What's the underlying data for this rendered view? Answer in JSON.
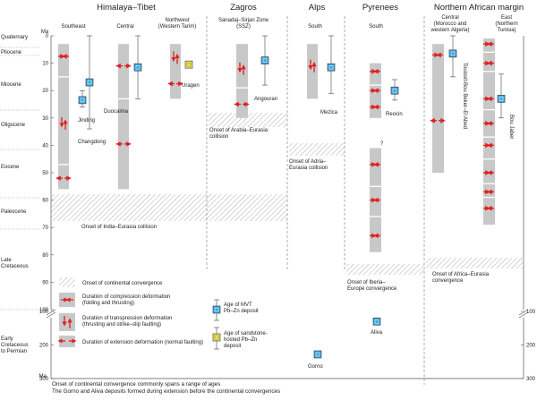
{
  "header": {
    "ma_top": "Ma",
    "ma_bottom": "Ma",
    "groups": [
      {
        "name": "Himalaya–Tibet",
        "subs": [
          "Southeast",
          "Central",
          "Northwest (Western Tarim)"
        ]
      },
      {
        "name": "Zagros",
        "subs": [
          "Sanadaj–Sirjan Zone (SSZ)"
        ]
      },
      {
        "name": "Alps",
        "subs": [
          "South"
        ]
      },
      {
        "name": "Pyrenees",
        "subs": [
          "South"
        ]
      },
      {
        "name": "Northern African margin",
        "subs": [
          "Central (Morocco and western Algeria)",
          "East (Northern Tunisia)"
        ]
      }
    ]
  },
  "epochs": [
    "Quaternary",
    "Pliocene",
    "Miocene",
    "Oligocene",
    "Eocene",
    "Paleocene",
    "Late Cretaceous",
    "Early Cretaceous to Permian"
  ],
  "ticks_upper": [
    "0",
    "10",
    "20",
    "30",
    "40",
    "50",
    "60",
    "70",
    "80",
    "90",
    "100"
  ],
  "ticks_lower": [
    "100",
    "200",
    "300"
  ],
  "deposits": {
    "jinding": "Jinding",
    "changdong": "Changdong",
    "duocaima": "Duocaima",
    "uragen": "Uragen",
    "angouran": "Angouran",
    "mezica": "Mezica",
    "reocin": "Reocin",
    "touissit": "Touissit-Bou Beker–El Abed",
    "boujaber": "Bou Jaber",
    "aliva": "Aliva",
    "gorno": "Gorno",
    "question": "?"
  },
  "collisions": {
    "india": "Onset of India–Eurasia collision",
    "arabia": "Onset of Arabia–Eurasia collision",
    "adria": "Onset of Adria–Eurasia collision",
    "iberia": "Onset of Iberia–Europe convergence",
    "africa": "Onset of Africa–Eurasia convergence"
  },
  "legend": {
    "convergence": "Onset of continental convergence",
    "compression": "Duration of compression deformation (folding and thrusting)",
    "transpression": "Duration of transpression deformation (thrusting and strike–slip faulting)",
    "extension": "Duration of extension deformation (normal faulting)",
    "mvt": "Age of MVT Pb–Zn deposit",
    "sandstone": "Age of sandstone-hosted Pb–Zn deposit"
  },
  "notes": [
    "Onset of continental convergence commonly spans a range of ages",
    "The Gorno and Aliva deposits formed during extension before the continental convergences"
  ],
  "colors": {
    "band": "#c8c8c8",
    "arrow": "#e02020",
    "mvt": "#3aa8e0",
    "sandstone": "#f2e84a",
    "hatch": "#888888"
  }
}
